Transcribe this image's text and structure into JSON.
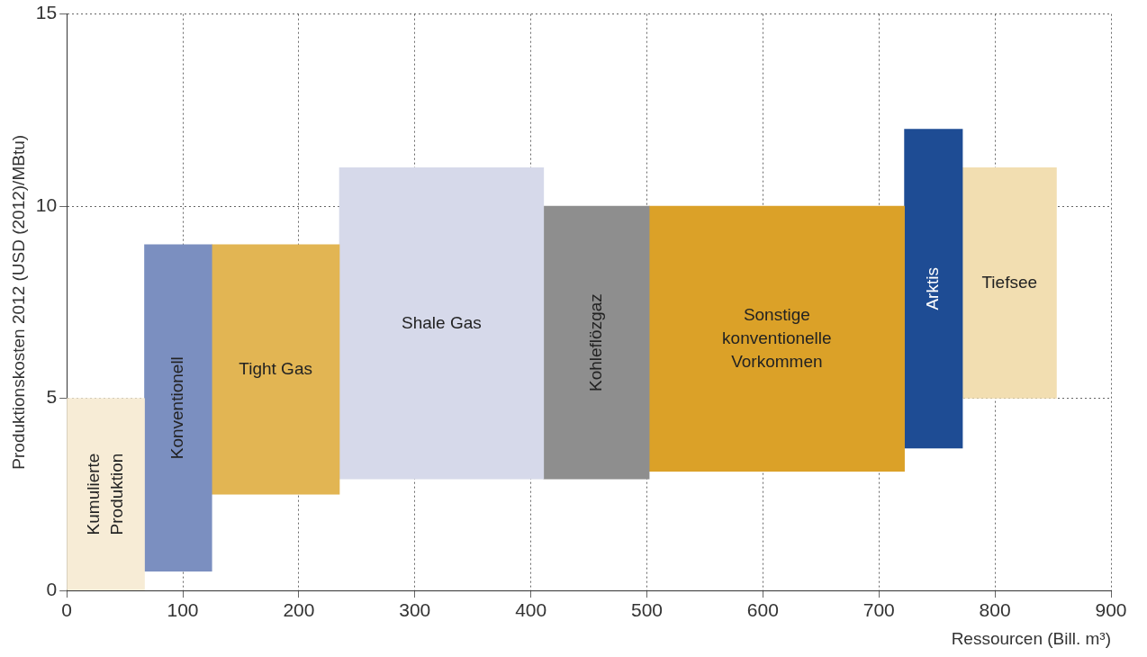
{
  "chart_data": {
    "type": "bar",
    "xlabel": "Ressourcen (Bill. m³)",
    "ylabel": "Produktionskosten 2012 (USD (2012)/MBtu)",
    "xlim": [
      0,
      900
    ],
    "xticks": [
      0,
      100,
      200,
      300,
      400,
      500,
      600,
      700,
      800,
      900
    ],
    "ylim": [
      0,
      15
    ],
    "yticks": [
      0,
      5,
      10,
      15
    ],
    "grid": true,
    "line_style": "dotted",
    "series": [
      {
        "name": "Kumulierte Produktion",
        "color": "#f7ecd6",
        "x": [
          33.5
        ],
        "values": [
          5
        ],
        "base": [
          0
        ]
      },
      {
        "name": "Konventionell",
        "color": "#7b8fc0",
        "x": [
          96
        ],
        "values": [
          8.5
        ],
        "base": [
          0.5
        ]
      },
      {
        "name": "Tight Gas",
        "color": "#e2b553",
        "x": [
          180
        ],
        "values": [
          6.5
        ],
        "base": [
          2.5
        ]
      },
      {
        "name": "Shale Gas",
        "color": "#d6d9ea",
        "x": [
          323
        ],
        "values": [
          8.1
        ],
        "base": [
          2.9
        ]
      },
      {
        "name": "Kohleflözgaz",
        "color": "#8e8e8e",
        "x": [
          456.5
        ],
        "values": [
          7.1
        ],
        "base": [
          2.9
        ]
      },
      {
        "name": "Sonstige konventionelle Vorkommen",
        "color": "#dba128",
        "x": [
          612
        ],
        "values": [
          6.9
        ],
        "base": [
          3.1
        ]
      },
      {
        "name": "Arktis",
        "color": "#1e4c94",
        "x": [
          747
        ],
        "values": [
          8.3
        ],
        "base": [
          3.7
        ]
      },
      {
        "name": "Tiefsee",
        "color": "#f2deb1",
        "x": [
          812.5
        ],
        "values": [
          6
        ],
        "base": [
          5
        ]
      }
    ]
  }
}
